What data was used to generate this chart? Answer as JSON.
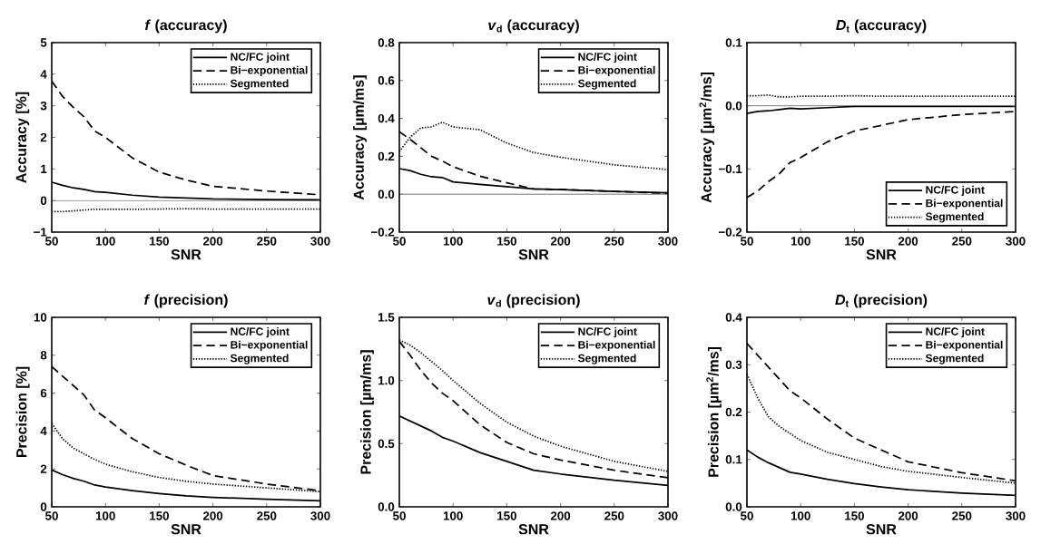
{
  "chart_data": [
    {
      "type": "line",
      "title": "*f* (accuracy)",
      "xlabel": "SNR",
      "ylabel": "Accuracy [%]",
      "legend": "top right",
      "xlim": [
        50,
        300
      ],
      "ylim": [
        -1,
        5
      ],
      "xticks": [
        50,
        100,
        150,
        200,
        250,
        300
      ],
      "yticks": [
        {
          "value": -1,
          "label": "−1"
        },
        0,
        1,
        2,
        3,
        4,
        5
      ],
      "x": [
        50,
        60,
        70,
        80,
        90,
        100,
        125,
        150,
        175,
        200,
        250,
        300
      ],
      "ref_lines": [
        {
          "axis": "y",
          "value": 0
        }
      ],
      "series": [
        {
          "name": "NC/FC joint",
          "color": "#000000",
          "line_style": "solid",
          "values": [
            0.58,
            0.48,
            0.4,
            0.35,
            0.28,
            0.26,
            0.17,
            0.11,
            0.08,
            0.05,
            0.03,
            0.02
          ]
        },
        {
          "name": "Bi−exponential",
          "color": "#000000",
          "line_style": "dashed",
          "values": [
            3.78,
            3.3,
            2.95,
            2.65,
            2.2,
            2.0,
            1.35,
            0.9,
            0.65,
            0.45,
            0.3,
            0.18
          ]
        },
        {
          "name": "Segmented",
          "color": "#000000",
          "line_style": "dotted",
          "values": [
            -0.35,
            -0.35,
            -0.33,
            -0.3,
            -0.28,
            -0.28,
            -0.28,
            -0.27,
            -0.26,
            -0.27,
            -0.27,
            -0.27
          ]
        }
      ]
    },
    {
      "type": "line",
      "title": "*v*$_{d}$ (accuracy)",
      "xlabel": "SNR",
      "ylabel": "Accuracy [µm/ms]",
      "legend": "top right",
      "xlim": [
        50,
        300
      ],
      "ylim": [
        -0.2,
        0.8
      ],
      "xticks": [
        50,
        100,
        150,
        200,
        250,
        300
      ],
      "yticks": [
        {
          "value": -0.2,
          "label": "−0.2"
        },
        {
          "value": 0,
          "label": "0.0"
        },
        0.2,
        0.4,
        0.6,
        0.8
      ],
      "x": [
        50,
        60,
        70,
        80,
        90,
        100,
        125,
        150,
        175,
        200,
        250,
        300
      ],
      "ref_lines": [
        {
          "axis": "y",
          "value": 0
        }
      ],
      "series": [
        {
          "name": "NC/FC joint",
          "color": "#000000",
          "line_style": "solid",
          "values": [
            0.135,
            0.125,
            0.105,
            0.092,
            0.088,
            0.065,
            0.052,
            0.04,
            0.028,
            0.024,
            0.015,
            0.007
          ]
        },
        {
          "name": "Bi−exponential",
          "color": "#000000",
          "line_style": "dashed",
          "values": [
            0.33,
            0.29,
            0.245,
            0.2,
            0.175,
            0.145,
            0.095,
            0.06,
            0.028,
            0.025,
            0.015,
            0.005
          ]
        },
        {
          "name": "Segmented",
          "color": "#000000",
          "line_style": "dotted",
          "values": [
            0.225,
            0.3,
            0.35,
            0.355,
            0.38,
            0.355,
            0.34,
            0.27,
            0.22,
            0.195,
            0.155,
            0.13
          ]
        }
      ]
    },
    {
      "type": "line",
      "title": "*D*$_{t}$ (accuracy)",
      "xlabel": "SNR",
      "ylabel": "Accuracy [µm$^{2}$/ms]",
      "legend": "bottom right",
      "xlim": [
        50,
        300
      ],
      "ylim": [
        -0.2,
        0.1
      ],
      "xticks": [
        50,
        100,
        150,
        200,
        250,
        300
      ],
      "yticks": [
        {
          "value": -0.2,
          "label": "−0.2"
        },
        {
          "value": -0.1,
          "label": "−0.1"
        },
        {
          "value": 0,
          "label": "0.0"
        },
        0.1
      ],
      "x": [
        50,
        60,
        70,
        80,
        90,
        100,
        125,
        150,
        175,
        200,
        250,
        300
      ],
      "ref_lines": [
        {
          "axis": "y",
          "value": 0
        }
      ],
      "series": [
        {
          "name": "NC/FC joint",
          "color": "#000000",
          "line_style": "solid",
          "values": [
            -0.012,
            -0.009,
            -0.008,
            -0.006,
            -0.004,
            -0.005,
            -0.003,
            -0.001,
            -0.001,
            -0.001,
            -0.001,
            -0.001
          ]
        },
        {
          "name": "Bi−exponential",
          "color": "#000000",
          "line_style": "dashed",
          "values": [
            -0.145,
            -0.135,
            -0.12,
            -0.108,
            -0.09,
            -0.082,
            -0.057,
            -0.04,
            -0.031,
            -0.022,
            -0.014,
            -0.009
          ]
        },
        {
          "name": "Segmented",
          "color": "#000000",
          "line_style": "dotted",
          "values": [
            0.016,
            0.016,
            0.017,
            0.014,
            0.014,
            0.015,
            0.015,
            0.016,
            0.015,
            0.015,
            0.015,
            0.015
          ]
        }
      ]
    },
    {
      "type": "line",
      "title": "*f* (precision)",
      "xlabel": "SNR",
      "ylabel": "Precision [%]",
      "legend": "top right",
      "xlim": [
        50,
        300
      ],
      "ylim": [
        0,
        10
      ],
      "xticks": [
        50,
        100,
        150,
        200,
        250,
        300
      ],
      "yticks": [
        0,
        2,
        4,
        6,
        8,
        10
      ],
      "x": [
        50,
        60,
        70,
        80,
        90,
        100,
        125,
        150,
        175,
        200,
        250,
        300
      ],
      "series": [
        {
          "name": "NC/FC joint",
          "color": "#000000",
          "line_style": "solid",
          "values": [
            1.95,
            1.7,
            1.5,
            1.35,
            1.15,
            1.05,
            0.85,
            0.7,
            0.58,
            0.5,
            0.4,
            0.32
          ]
        },
        {
          "name": "Bi−exponential",
          "color": "#000000",
          "line_style": "dashed",
          "values": [
            7.4,
            6.9,
            6.4,
            5.9,
            5.1,
            4.7,
            3.6,
            2.8,
            2.2,
            1.65,
            1.2,
            0.85
          ]
        },
        {
          "name": "Segmented",
          "color": "#000000",
          "line_style": "dotted",
          "values": [
            4.4,
            3.6,
            3.1,
            2.8,
            2.5,
            2.25,
            1.85,
            1.55,
            1.35,
            1.2,
            1.0,
            0.8
          ]
        }
      ]
    },
    {
      "type": "line",
      "title": "*v*$_{d}$ (precision)",
      "xlabel": "SNR",
      "ylabel": "Precision [µm/ms]",
      "legend": "top right",
      "xlim": [
        50,
        300
      ],
      "ylim": [
        0,
        1.5
      ],
      "xticks": [
        50,
        100,
        150,
        200,
        250,
        300
      ],
      "yticks": [
        {
          "value": 0,
          "label": "0.0"
        },
        0.5,
        {
          "value": 1,
          "label": "1.0"
        },
        1.5
      ],
      "x": [
        50,
        60,
        70,
        80,
        90,
        100,
        125,
        150,
        175,
        200,
        250,
        300
      ],
      "series": [
        {
          "name": "NC/FC joint",
          "color": "#000000",
          "line_style": "solid",
          "values": [
            0.72,
            0.68,
            0.64,
            0.6,
            0.55,
            0.52,
            0.43,
            0.36,
            0.29,
            0.26,
            0.21,
            0.17
          ]
        },
        {
          "name": "Bi−exponential",
          "color": "#000000",
          "line_style": "dashed",
          "values": [
            1.31,
            1.2,
            1.08,
            0.98,
            0.9,
            0.84,
            0.65,
            0.51,
            0.42,
            0.37,
            0.29,
            0.23
          ]
        },
        {
          "name": "Segmented",
          "color": "#000000",
          "line_style": "dotted",
          "values": [
            1.32,
            1.28,
            1.22,
            1.15,
            1.08,
            1.0,
            0.82,
            0.67,
            0.56,
            0.48,
            0.36,
            0.28
          ]
        }
      ]
    },
    {
      "type": "line",
      "title": "*D*$_{t}$ (precision)",
      "xlabel": "SNR",
      "ylabel": "Precision [µm$^{2}$/ms]",
      "legend": "top right",
      "xlim": [
        50,
        300
      ],
      "ylim": [
        0,
        0.4
      ],
      "xticks": [
        50,
        100,
        150,
        200,
        250,
        300
      ],
      "yticks": [
        {
          "value": 0,
          "label": "0.0"
        },
        0.1,
        0.2,
        0.3,
        0.4
      ],
      "x": [
        50,
        60,
        70,
        80,
        90,
        100,
        125,
        150,
        175,
        200,
        250,
        300
      ],
      "series": [
        {
          "name": "NC/FC joint",
          "color": "#000000",
          "line_style": "solid",
          "values": [
            0.12,
            0.105,
            0.093,
            0.083,
            0.073,
            0.069,
            0.058,
            0.049,
            0.042,
            0.036,
            0.029,
            0.024
          ]
        },
        {
          "name": "Bi−exponential",
          "color": "#000000",
          "line_style": "dashed",
          "values": [
            0.345,
            0.32,
            0.295,
            0.27,
            0.245,
            0.23,
            0.185,
            0.145,
            0.12,
            0.095,
            0.072,
            0.055
          ]
        },
        {
          "name": "Segmented",
          "color": "#000000",
          "line_style": "dotted",
          "values": [
            0.28,
            0.23,
            0.19,
            0.17,
            0.155,
            0.14,
            0.115,
            0.1,
            0.085,
            0.075,
            0.062,
            0.05
          ]
        }
      ]
    }
  ]
}
